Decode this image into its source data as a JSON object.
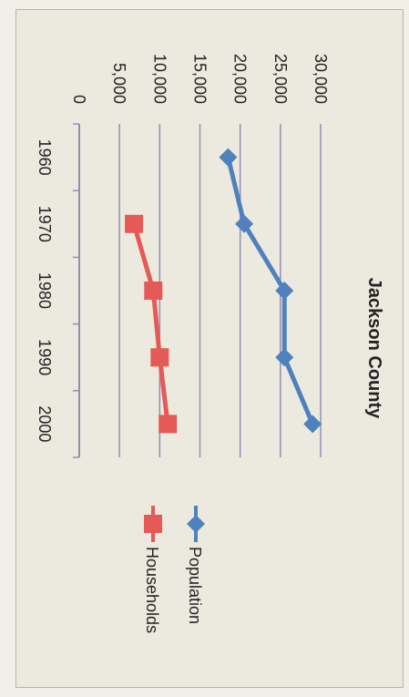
{
  "chart_data": {
    "type": "line",
    "title": "Jackson County",
    "xlabel": "",
    "ylabel": "",
    "categories": [
      "1960",
      "1970",
      "1980",
      "1990",
      "2000"
    ],
    "y_ticks": [
      "0",
      "5,000",
      "10,000",
      "15,000",
      "20,000",
      "25,000",
      "30,000"
    ],
    "ylim": [
      0,
      30000
    ],
    "grid": true,
    "legend_position": "right",
    "orientation": "rotated-90-clockwise",
    "series": [
      {
        "name": "Population",
        "color": "#4f81bd",
        "marker": "diamond",
        "values": [
          18500,
          20500,
          25500,
          25500,
          29000
        ]
      },
      {
        "name": "Households",
        "color": "#e55a57",
        "marker": "square",
        "values": [
          null,
          6800,
          9200,
          10000,
          11000
        ]
      }
    ]
  }
}
